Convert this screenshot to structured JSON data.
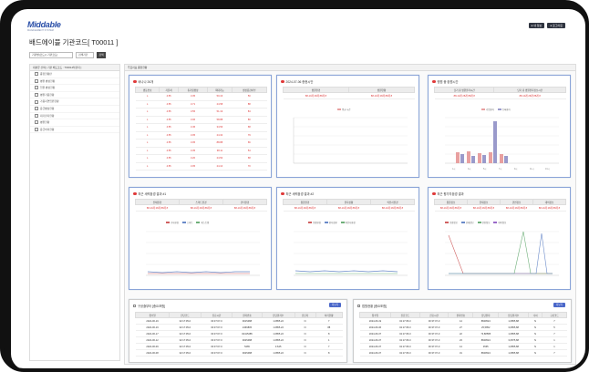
{
  "app": {
    "logo": "Middable",
    "logo_sub": "MANAGEMENT SYSTEM",
    "top_buttons": [
      "● 내 정보",
      "● 로그아웃"
    ]
  },
  "page": {
    "title": "배드에이블 기관코드[ T00011 ]",
    "filter_select": "기관명(코드) [ 기관코드]",
    "filter_select2": "검색기간",
    "go": "검색"
  },
  "sidebar": {
    "header": "대분류 선택 [ 기관 배드코드 : T00014차관지 ]",
    "items": [
      "종합현황판",
      "병원 병상현황",
      "입원 병상현황",
      "병원가용현황",
      "가용지연입원현황",
      "응급병상현황",
      "대기환자현황",
      "병원현황",
      "응급처리현황"
    ]
  },
  "main": {
    "header": "주요지표 종합현황"
  },
  "card1": {
    "title": "바나나 26개",
    "cols": [
      "병동번호",
      "기준치",
      "총가용병상",
      "최대가능",
      "병상증감여부"
    ],
    "rows": [
      [
        "L",
        "4.55",
        "3.35",
        "50.16",
        "50"
      ],
      [
        "L",
        "4.55",
        "3.71",
        "24.58",
        "88"
      ],
      [
        "L",
        "4.55",
        "3.55",
        "51.19",
        "84"
      ],
      [
        "L",
        "4.55",
        "3.06",
        "58.88",
        "80"
      ],
      [
        "L",
        "4.55",
        "3.45",
        "34.56",
        "68"
      ],
      [
        "L",
        "4.55",
        "3.05",
        "24.34",
        "79"
      ],
      [
        "L",
        "4.55",
        "3.05",
        "88.88",
        "66"
      ],
      [
        "L",
        "4.55",
        "3.35",
        "38.11",
        "54"
      ],
      [
        "L",
        "4.55",
        "3.20",
        "24.50",
        "68"
      ],
      [
        "L",
        "4.55",
        "3.05",
        "24.10",
        "70"
      ]
    ]
  },
  "card2": {
    "title": "2024-07-06 종현시안",
    "cols": [
      "병원환경",
      "병원현황"
    ],
    "vals": [
      "88-10개 28개 88개 8",
      "88-10개 28개 88개 8"
    ],
    "legend": [
      "평균 시간"
    ]
  },
  "card3": {
    "title": "병원 중 환원시간",
    "cols": [
      "당기 총 병원환자시간",
      "당기 총 병원환자정보시간"
    ],
    "vals": [
      "88-10개 28개 88개 8",
      "88-10개 28개 88개 8"
    ],
    "legend": [
      "가입환자",
      "등록환자"
    ],
    "xlabels": [
      "1시",
      "3시",
      "5시",
      "7시",
      "9시",
      "11시",
      "13시"
    ]
  },
  "card4": {
    "title": "최근 세력환경 결과 #1",
    "cols": [
      "전체환경",
      "스마트환경",
      "관리환경"
    ],
    "vals": [
      "88-10개 28개 88개 8",
      "88-10개 28개 88개 8",
      "88-10개 28개 88개 8"
    ],
    "legend": [
      "기타환경",
      "스마트",
      "세스트템"
    ]
  },
  "card5": {
    "title": "최근 세력환경 결과 #2",
    "cols": [
      "종합환경",
      "환자상황",
      "의전사환경"
    ],
    "vals": [
      "88-10개 28개 88개 8",
      "88-10개 28개 88개 8",
      "88-10개 28개 88개 8"
    ],
    "legend": [
      "종합환경",
      "환자상황",
      "의전사환경"
    ]
  },
  "card6": {
    "title": "최근 평가차환경 결과",
    "cols": [
      "종합정보",
      "현재정보",
      "관련정보",
      "대비정보"
    ],
    "vals": [
      "88-10개 28개 88개 8",
      "88-10개 28개 88개 8",
      "88-10개 28개 88개 8",
      "88-10개 28개 88개 8"
    ],
    "legend": [
      "종합정보",
      "현재정보",
      "관련정보",
      "대비정보"
    ]
  },
  "table1": {
    "title": "구공출부터 [중요포함]",
    "button": "더보기",
    "cols": [
      "접수일",
      "진단코드",
      "진료시간",
      "환자번호",
      "담당환자수",
      "진단자",
      "처리현황"
    ],
    "rows": [
      [
        "2024-06-19",
        "02:17:05-0",
        "00:37:07-0",
        "9015488",
        "1.0855.22",
        "N",
        "7"
      ],
      [
        "2024-06-19",
        "02:17:05-0",
        "00:37:07-0",
        "2466805",
        "1.0855.22",
        "N",
        "88"
      ],
      [
        "2024-06-17",
        "02:17:05-0",
        "00:37:07-0",
        "02415485",
        "1.0855.22",
        "N",
        "8"
      ],
      [
        "2024-06-12",
        "02:17:05-0",
        "00:37:07-0",
        "9025488",
        "1.0855.22",
        "N",
        "1"
      ],
      [
        "2024-06-09",
        "02:17:05-0",
        "00:37:07-0",
        "5465",
        "3.645",
        "N",
        "7"
      ],
      [
        "2024-06-08",
        "02:17:05-0",
        "00:37:07-0",
        "9025488",
        "1.0855.22",
        "N",
        "8"
      ]
    ]
  },
  "table2": {
    "title": "법원현황 [중요포함]",
    "button": "더보기",
    "cols": [
      "접수일",
      "진단코드",
      "진료시간",
      "환자번호",
      "담당환자",
      "담당환자수",
      "나이",
      "구분코드"
    ],
    "rows": [
      [
        "2024-06-19",
        "02:17:05-0",
        "00:37:07-0",
        "14",
        "8849524",
        "1,0855,88",
        "N",
        "7"
      ],
      [
        "2024-06-06",
        "02:17:05-0",
        "00:37:07-0",
        "27",
        "25,5852",
        "3,0855,88",
        "N",
        "5"
      ],
      [
        "2024-06-07",
        "02:17:05-0",
        "00:37:07-0",
        "22",
        "73,88585",
        "1,0855,88",
        "N",
        "7"
      ],
      [
        "2024-06-07",
        "02:17:05-0",
        "00:37:07-0",
        "23",
        "8849524",
        "3,0875,88",
        "N",
        "1"
      ],
      [
        "2024-06-07",
        "02:17:05-0",
        "00:37:07-0",
        "14",
        "4565",
        "1,0855,88",
        "N",
        "1"
      ],
      [
        "2024-06-07",
        "02:17:05-0",
        "00:37:07-0",
        "31",
        "8849524",
        "1,0855,88",
        "N",
        "7"
      ]
    ]
  },
  "colors": {
    "accent": "#2a4fa8",
    "red": "#d33333",
    "card_border": "#8aa4d8",
    "bar1": "#e8a0a0",
    "bar2": "#9a9acb"
  }
}
